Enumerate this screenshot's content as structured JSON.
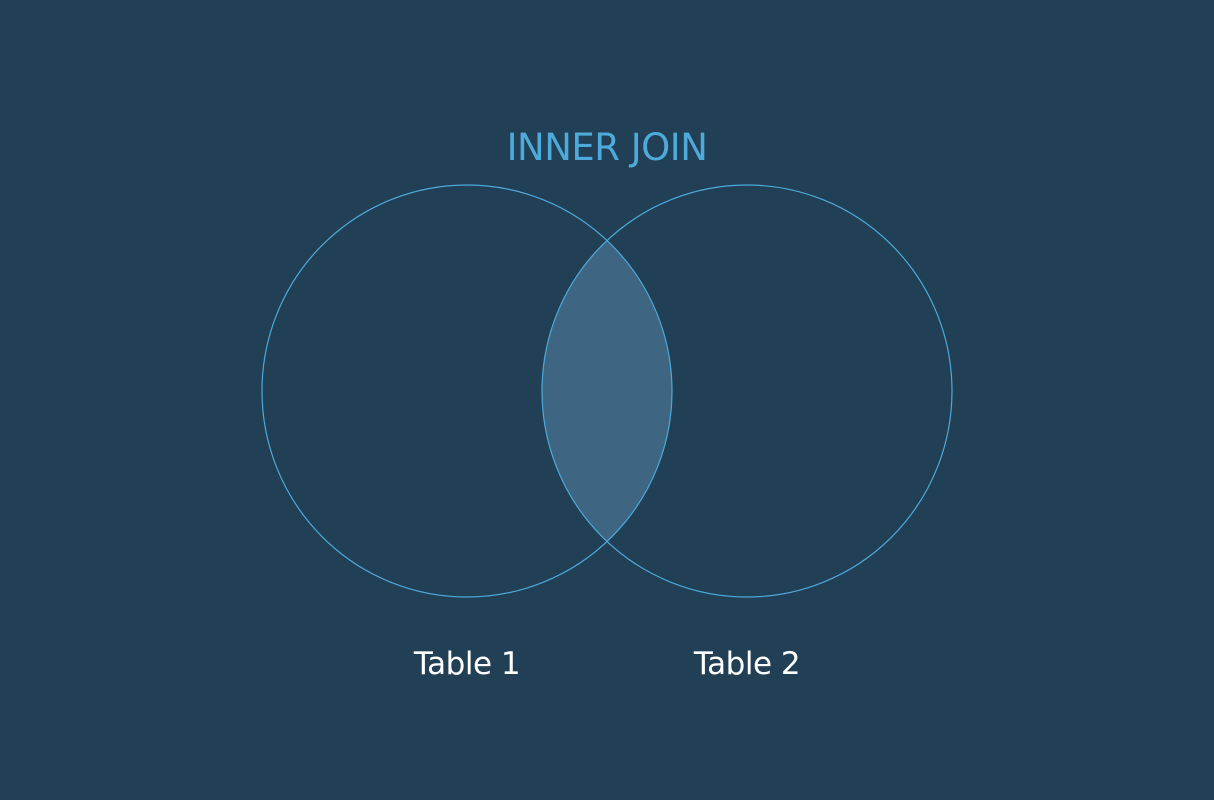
{
  "diagram": {
    "title": "INNER JOIN",
    "left_set": "Table 1",
    "right_set": "Table 2",
    "highlighted_region": "intersection"
  },
  "colors": {
    "background": "#213f55",
    "accent": "#4eaadb",
    "label_text": "#ffffff",
    "intersection_fill": "#3e6581"
  }
}
